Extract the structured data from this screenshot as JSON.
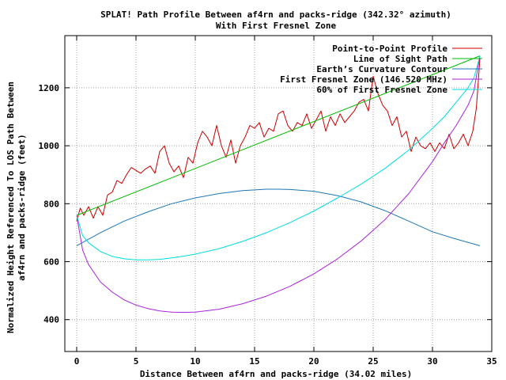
{
  "chart_data": {
    "type": "line",
    "title_line1": "SPLAT! Path Profile Between af4rn and packs-ridge (342.32° azimuth)",
    "title_line2": "With First Fresnel Zone",
    "xlabel": "Distance Between af4rn and packs-ridge (34.02 miles)",
    "ylabel_line1": "Normalized Height Referenced To LOS Path Between",
    "ylabel_line2": "af4rn and packs-ridge (feet)",
    "xlim": [
      -1,
      35
    ],
    "ylim": [
      290,
      1380
    ],
    "xticks": [
      0,
      5,
      10,
      15,
      20,
      25,
      30,
      35
    ],
    "yticks": [
      400,
      600,
      800,
      1000,
      1200
    ],
    "grid": true,
    "legend_position": "top-right",
    "series": [
      {
        "name": "Point-to-Point Profile",
        "color": "#cc0000",
        "x": [
          0,
          0.3,
          0.6,
          1.0,
          1.4,
          1.8,
          2.2,
          2.6,
          3.0,
          3.4,
          3.8,
          4.2,
          4.6,
          5.0,
          5.4,
          5.8,
          6.2,
          6.6,
          7.0,
          7.4,
          7.8,
          8.2,
          8.6,
          9.0,
          9.4,
          9.8,
          10.2,
          10.6,
          11.0,
          11.4,
          11.8,
          12.2,
          12.6,
          13.0,
          13.4,
          13.8,
          14.2,
          14.6,
          15.0,
          15.4,
          15.8,
          16.2,
          16.6,
          17.0,
          17.4,
          17.8,
          18.2,
          18.6,
          19.0,
          19.4,
          19.8,
          20.2,
          20.6,
          21.0,
          21.4,
          21.8,
          22.2,
          22.6,
          23.0,
          23.4,
          23.8,
          24.2,
          24.6,
          25.0,
          25.4,
          25.8,
          26.2,
          26.6,
          27.0,
          27.4,
          27.8,
          28.2,
          28.6,
          29.0,
          29.4,
          29.8,
          30.2,
          30.6,
          31.0,
          31.4,
          31.8,
          32.2,
          32.6,
          33.0,
          33.4,
          33.7,
          34.0
        ],
        "y": [
          740,
          785,
          760,
          790,
          750,
          790,
          760,
          830,
          840,
          880,
          870,
          900,
          925,
          915,
          905,
          920,
          930,
          905,
          980,
          1000,
          940,
          910,
          930,
          890,
          960,
          940,
          1010,
          1050,
          1030,
          1000,
          1070,
          1000,
          960,
          1020,
          940,
          1000,
          1030,
          1070,
          1060,
          1080,
          1030,
          1060,
          1050,
          1110,
          1120,
          1070,
          1050,
          1080,
          1070,
          1110,
          1060,
          1090,
          1120,
          1050,
          1100,
          1070,
          1110,
          1080,
          1100,
          1120,
          1150,
          1160,
          1120,
          1240,
          1180,
          1140,
          1120,
          1070,
          1100,
          1030,
          1050,
          980,
          1030,
          1000,
          990,
          1010,
          980,
          1010,
          990,
          1040,
          990,
          1010,
          1040,
          1000,
          1050,
          1130,
          1300
        ]
      },
      {
        "name": "Line of Sight Path",
        "color": "#00bb00",
        "x": [
          0,
          34
        ],
        "y": [
          760,
          1310
        ]
      },
      {
        "name": "Earth’s Curvature Contour",
        "color": "#1f77b4",
        "x": [
          0,
          2,
          4,
          6,
          8,
          10,
          12,
          14,
          16,
          17,
          18,
          20,
          22,
          24,
          26,
          28,
          30,
          32,
          34
        ],
        "y": [
          655,
          700,
          740,
          772,
          800,
          820,
          835,
          845,
          850,
          850,
          849,
          843,
          828,
          806,
          776,
          740,
          703,
          678,
          655
        ]
      },
      {
        "name": "First Fresnel Zone (146.520 MHz)",
        "color": "#aa22dd",
        "x": [
          0,
          0.5,
          1,
          2,
          3,
          4,
          5,
          6,
          7,
          8,
          9,
          10,
          12,
          14,
          16,
          18,
          20,
          22,
          24,
          26,
          28,
          30,
          31,
          32,
          33,
          33.5,
          34
        ],
        "y": [
          760,
          640,
          590,
          530,
          495,
          468,
          450,
          438,
          430,
          426,
          425,
          426,
          436,
          455,
          481,
          515,
          558,
          610,
          672,
          745,
          835,
          945,
          1010,
          1070,
          1140,
          1190,
          1310
        ]
      },
      {
        "name": "60% of First Fresnel Zone",
        "color": "#00dddd",
        "x": [
          0,
          0.5,
          1,
          2,
          3,
          4,
          5,
          6,
          7,
          8,
          9,
          10,
          12,
          14,
          16,
          18,
          20,
          22,
          24,
          26,
          28,
          30,
          31,
          32,
          33,
          33.5,
          34
        ],
        "y": [
          760,
          690,
          665,
          635,
          618,
          610,
          606,
          606,
          608,
          613,
          619,
          626,
          645,
          670,
          700,
          735,
          775,
          820,
          868,
          922,
          985,
          1060,
          1100,
          1150,
          1200,
          1235,
          1310
        ]
      }
    ]
  }
}
